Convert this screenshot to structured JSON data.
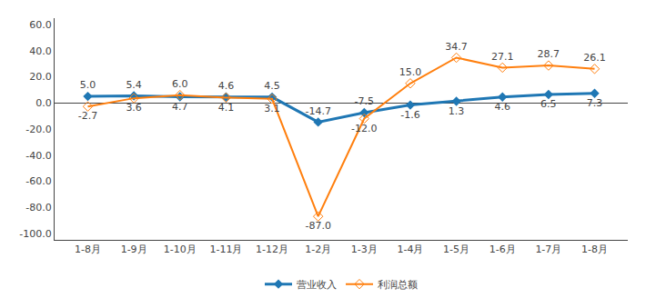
{
  "chart_data": {
    "type": "line",
    "categories": [
      "1-8月",
      "1-9月",
      "1-10月",
      "1-11月",
      "1-12月",
      "1-2月",
      "1-3月",
      "1-4月",
      "1-5月",
      "1-6月",
      "1-7月",
      "1-8月"
    ],
    "series": [
      {
        "name": "营业收入",
        "marker": "diamond",
        "values": [
          5.0,
          5.4,
          4.7,
          4.6,
          4.5,
          -14.7,
          -7.5,
          -1.6,
          1.3,
          4.6,
          6.5,
          7.3
        ],
        "value_labels": [
          "5.0",
          "5.4",
          "4.7",
          "4.6",
          "4.5",
          "-14.7",
          "-7.5",
          "-1.6",
          "1.3",
          "4.6",
          "6.5",
          "7.3"
        ]
      },
      {
        "name": "利润总额",
        "marker": "diamond-open",
        "values": [
          -2.7,
          3.6,
          6.0,
          4.1,
          3.1,
          -87.0,
          -12.0,
          15.0,
          34.7,
          27.1,
          28.7,
          26.1
        ],
        "value_labels": [
          "-2.7",
          "3.6",
          "6.0",
          "4.1",
          "3.1",
          "-87.0",
          "-12.0",
          "15.0",
          "34.7",
          "27.1",
          "28.7",
          "26.1"
        ]
      }
    ],
    "ylim": [
      -105,
      65
    ],
    "yticks": [
      {
        "value": -100,
        "label": "-100.0"
      },
      {
        "value": -80,
        "label": "-80.0"
      },
      {
        "value": -60,
        "label": "-60.0"
      },
      {
        "value": -40,
        "label": "-40.0"
      },
      {
        "value": -20,
        "label": "-20.0"
      },
      {
        "value": 0,
        "label": "0.0"
      },
      {
        "value": 20,
        "label": "20.0"
      },
      {
        "value": 40,
        "label": "40.0"
      },
      {
        "value": 60,
        "label": "60.0"
      }
    ],
    "grid": false,
    "data_labels": true,
    "legend": "bottom"
  }
}
